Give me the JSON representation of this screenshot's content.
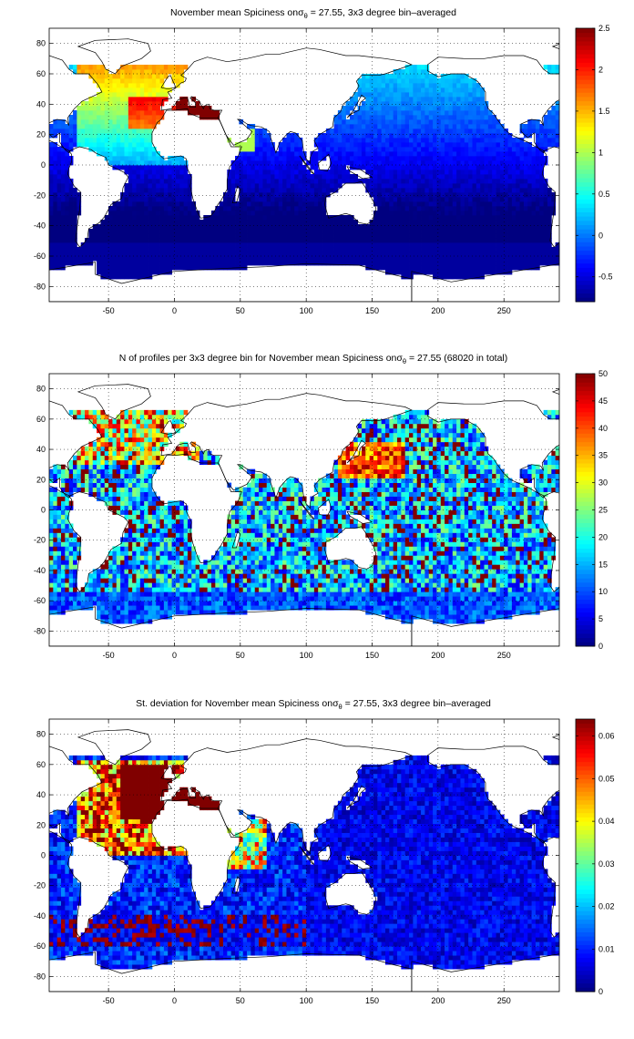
{
  "chart_data": [
    {
      "type": "heatmap",
      "title_prefix": "November mean Spiciness on",
      "title_symbol": "σ",
      "title_subscript": "θ",
      "title_suffix": " = 27.55, 3x3 degree bin–averaged",
      "xlim": [
        -95,
        292
      ],
      "ylim": [
        -90,
        90
      ],
      "x_ticks": [
        -50,
        0,
        50,
        100,
        150,
        200,
        250
      ],
      "y_ticks": [
        80,
        60,
        40,
        20,
        0,
        -20,
        -40,
        -60,
        -80
      ],
      "grid": true,
      "colorbar_range": [
        -0.8,
        2.5
      ],
      "colorbar_ticks": [
        2.5,
        2,
        1.5,
        1,
        0.5,
        0,
        -0.5
      ],
      "field": "mean_spiciness"
    },
    {
      "type": "heatmap",
      "title_prefix": "N of profiles per 3x3 degree bin for November mean Spiciness on",
      "title_symbol": "σ",
      "title_subscript": "θ",
      "title_suffix": " = 27.55 (68020 in total)",
      "xlim": [
        -95,
        292
      ],
      "ylim": [
        -90,
        90
      ],
      "x_ticks": [
        -50,
        0,
        50,
        100,
        150,
        200,
        250
      ],
      "y_ticks": [
        80,
        60,
        40,
        20,
        0,
        -20,
        -40,
        -60,
        -80
      ],
      "grid": true,
      "colorbar_range": [
        0,
        50
      ],
      "colorbar_ticks": [
        50,
        45,
        40,
        35,
        30,
        25,
        20,
        15,
        10,
        5,
        0
      ],
      "field": "profile_count"
    },
    {
      "type": "heatmap",
      "title_prefix": "St. deviation for November mean Spiciness on",
      "title_symbol": "σ",
      "title_subscript": "θ",
      "title_suffix": " = 27.55, 3x3 degree bin–averaged",
      "xlim": [
        -95,
        292
      ],
      "ylim": [
        -90,
        90
      ],
      "x_ticks": [
        -50,
        0,
        50,
        100,
        150,
        200,
        250
      ],
      "y_ticks": [
        80,
        60,
        40,
        20,
        0,
        -20,
        -40,
        -60,
        -80
      ],
      "grid": true,
      "colorbar_range": [
        0,
        0.064
      ],
      "colorbar_ticks": [
        0.06,
        0.05,
        0.04,
        0.03,
        0.02,
        0.01,
        0
      ],
      "field": "std_spiciness"
    }
  ],
  "colormap": "jet"
}
